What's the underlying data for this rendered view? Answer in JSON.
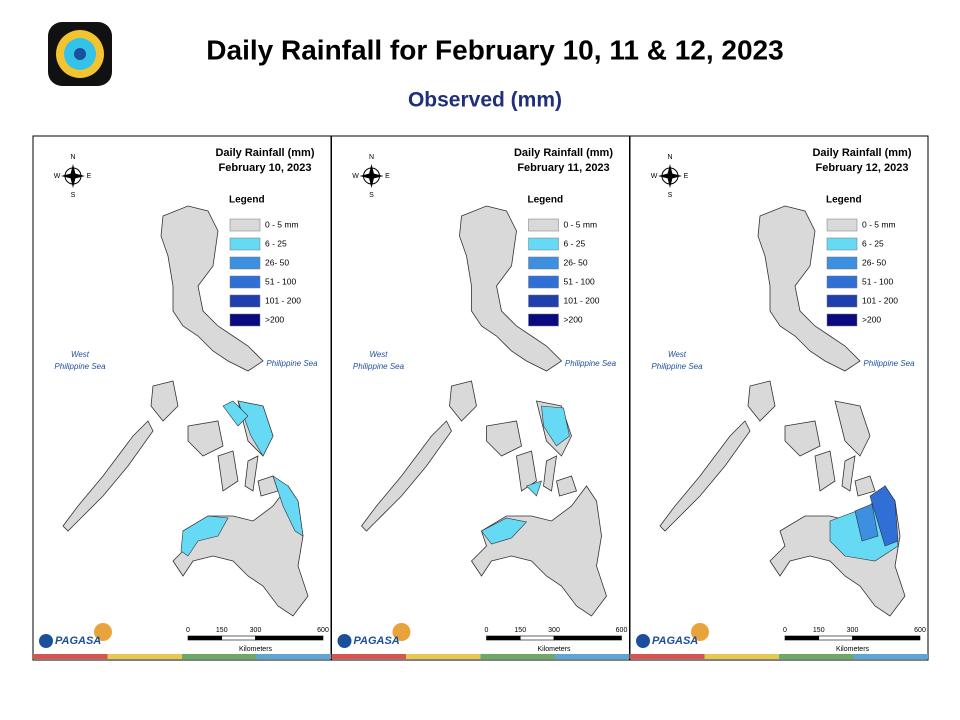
{
  "header": {
    "title": "Daily Rainfall for February 10, 11 & 12, 2023",
    "subtitle": "Observed (mm)"
  },
  "panels": [
    {
      "title": "Daily Rainfall (mm)",
      "date": "February 10, 2023"
    },
    {
      "title": "Daily Rainfall (mm)",
      "date": "February 11, 2023"
    },
    {
      "title": "Daily Rainfall (mm)",
      "date": "February 12, 2023"
    }
  ],
  "legend": {
    "title": "Legend",
    "items": [
      {
        "label": "0 - 5 mm",
        "color": "#d9d9d9"
      },
      {
        "label": "6 - 25",
        "color": "#66d9f5"
      },
      {
        "label": "26- 50",
        "color": "#3d8fe0"
      },
      {
        "label": "51 - 100",
        "color": "#2f6fd6"
      },
      {
        "label": "101 - 200",
        "color": "#1f3fae"
      },
      {
        "label": ">200",
        "color": "#0a0a80"
      }
    ]
  },
  "seas": {
    "west": [
      "West",
      "Philippine Sea"
    ],
    "east": "Philippine Sea"
  },
  "compass": {
    "n": "N",
    "e": "E",
    "s": "S",
    "w": "W"
  },
  "scale": {
    "ticks": [
      0,
      150,
      300,
      600
    ],
    "unit": "Kilometers"
  },
  "logo": {
    "name": "PAGASA"
  }
}
